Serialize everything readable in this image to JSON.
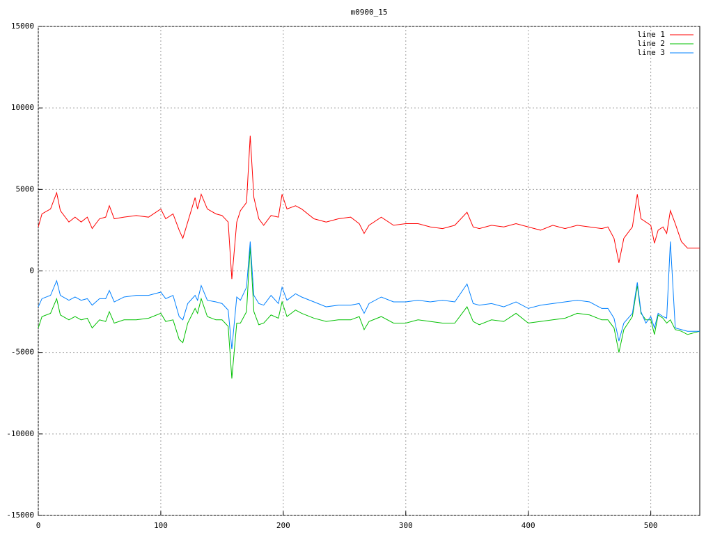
{
  "chart_data": {
    "type": "line",
    "title": "m0900_15",
    "x": [
      0,
      3,
      10,
      15,
      18,
      25,
      30,
      35,
      40,
      44,
      50,
      55,
      58,
      62,
      70,
      80,
      90,
      100,
      104,
      110,
      115,
      118,
      122,
      128,
      130,
      133,
      138,
      145,
      150,
      155,
      158,
      162,
      165,
      170,
      173,
      176,
      180,
      184,
      190,
      196,
      199,
      203,
      210,
      215,
      225,
      235,
      245,
      255,
      262,
      266,
      270,
      280,
      290,
      300,
      310,
      320,
      330,
      340,
      350,
      355,
      360,
      370,
      380,
      390,
      400,
      410,
      420,
      430,
      440,
      450,
      460,
      465,
      470,
      474,
      478,
      485,
      489,
      492,
      496,
      500,
      503,
      506,
      510,
      513,
      516,
      520,
      525,
      530,
      535,
      540
    ],
    "series": [
      {
        "name": "line 1",
        "color": "#ff0000",
        "values": [
          2700,
          3500,
          3800,
          4800,
          3700,
          3000,
          3300,
          3000,
          3300,
          2600,
          3200,
          3300,
          4000,
          3200,
          3300,
          3400,
          3300,
          3800,
          3200,
          3500,
          2500,
          2000,
          3000,
          4500,
          3800,
          4700,
          3800,
          3500,
          3400,
          3000,
          -500,
          3000,
          3700,
          4200,
          8300,
          4500,
          3200,
          2800,
          3400,
          3300,
          4700,
          3800,
          4000,
          3800,
          3200,
          3000,
          3200,
          3300,
          2900,
          2300,
          2800,
          3300,
          2800,
          2900,
          2900,
          2700,
          2600,
          2800,
          3600,
          2700,
          2600,
          2800,
          2700,
          2900,
          2700,
          2500,
          2800,
          2600,
          2800,
          2700,
          2600,
          2700,
          2000,
          500,
          2000,
          2700,
          4700,
          3200,
          3000,
          2800,
          1700,
          2500,
          2700,
          2300,
          3700,
          2900,
          1800,
          1400,
          1400,
          1400
        ]
      },
      {
        "name": "line 2",
        "color": "#00c000",
        "values": [
          -3500,
          -2800,
          -2600,
          -1700,
          -2700,
          -3000,
          -2800,
          -3000,
          -2900,
          -3500,
          -3000,
          -3100,
          -2500,
          -3200,
          -3000,
          -3000,
          -2900,
          -2600,
          -3100,
          -3000,
          -4200,
          -4400,
          -3200,
          -2300,
          -2600,
          -1700,
          -2800,
          -3000,
          -3000,
          -3400,
          -6600,
          -3200,
          -3200,
          -2500,
          1500,
          -2500,
          -3300,
          -3200,
          -2700,
          -2900,
          -1900,
          -2800,
          -2400,
          -2600,
          -2900,
          -3100,
          -3000,
          -3000,
          -2800,
          -3600,
          -3100,
          -2800,
          -3200,
          -3200,
          -3000,
          -3100,
          -3200,
          -3200,
          -2200,
          -3100,
          -3300,
          -3000,
          -3100,
          -2600,
          -3200,
          -3100,
          -3000,
          -2900,
          -2600,
          -2700,
          -3000,
          -3000,
          -3500,
          -5000,
          -3600,
          -2800,
          -900,
          -2600,
          -3000,
          -3000,
          -3900,
          -2700,
          -2900,
          -3200,
          -3000,
          -3600,
          -3700,
          -3900,
          -3800,
          -3700
        ]
      },
      {
        "name": "line 3",
        "color": "#0080ff",
        "values": [
          -2200,
          -1700,
          -1500,
          -600,
          -1500,
          -1800,
          -1600,
          -1800,
          -1700,
          -2100,
          -1700,
          -1700,
          -1200,
          -1900,
          -1600,
          -1500,
          -1500,
          -1300,
          -1700,
          -1500,
          -2800,
          -3000,
          -2000,
          -1500,
          -1800,
          -900,
          -1800,
          -1900,
          -2000,
          -2400,
          -4800,
          -1600,
          -1800,
          -1000,
          1800,
          -1500,
          -2000,
          -2100,
          -1500,
          -2000,
          -1000,
          -1800,
          -1400,
          -1600,
          -1900,
          -2200,
          -2100,
          -2100,
          -2000,
          -2600,
          -2000,
          -1600,
          -1900,
          -1900,
          -1800,
          -1900,
          -1800,
          -1900,
          -800,
          -2000,
          -2100,
          -2000,
          -2200,
          -1900,
          -2300,
          -2100,
          -2000,
          -1900,
          -1800,
          -1900,
          -2300,
          -2300,
          -2900,
          -4300,
          -3200,
          -2600,
          -700,
          -2500,
          -3200,
          -2800,
          -3500,
          -2600,
          -2800,
          -2900,
          1800,
          -3500,
          -3600,
          -3700,
          -3700,
          -3700
        ]
      }
    ],
    "xlim": [
      0,
      540
    ],
    "xticks": [
      0,
      100,
      200,
      300,
      400,
      500
    ],
    "ylim": [
      -15000,
      15000
    ],
    "yticks": [
      -15000,
      -10000,
      -5000,
      0,
      5000,
      10000,
      15000
    ],
    "grid": true,
    "legend": "top-right"
  }
}
